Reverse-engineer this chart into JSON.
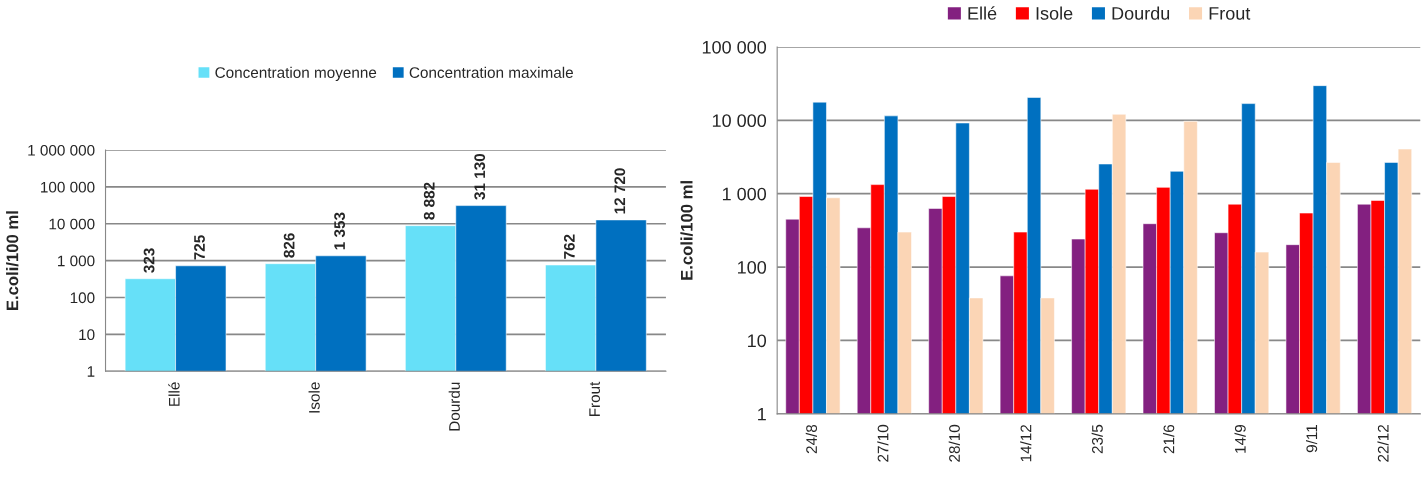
{
  "chart_data": [
    {
      "type": "bar",
      "ylabel": "E.coli/100 ml",
      "categories": [
        "Ellé",
        "Isole",
        "Dourdu",
        "Frout"
      ],
      "series": [
        {
          "name": "Concentration moyenne",
          "color": "#66e0f8",
          "values": [
            323,
            826,
            8882,
            762
          ],
          "value_labels": [
            "323",
            "826",
            "8 882",
            "762"
          ]
        },
        {
          "name": "Concentration maximale",
          "color": "#0070c0",
          "values": [
            725,
            1353,
            31130,
            12720
          ],
          "value_labels": [
            "725",
            "1 353",
            "31 130",
            "12 720"
          ]
        }
      ],
      "log": true,
      "ylim": [
        1,
        1000000
      ],
      "yticks": [
        1,
        10,
        100,
        {
          "value": 1000,
          "label": "1 000"
        },
        {
          "value": 10000,
          "label": "10 000"
        },
        {
          "value": 100000,
          "label": "100 000"
        },
        {
          "value": 1000000,
          "label": "1 000 000"
        }
      ],
      "grid": "y",
      "legend": "top"
    },
    {
      "type": "bar",
      "ylabel": "E.coli/100 ml",
      "categories": [
        "24/8",
        "27/10",
        "28/10",
        "14/12",
        "23/5",
        "21/6",
        "14/9",
        "9/11",
        "22/12"
      ],
      "series": [
        {
          "name": "Ellé",
          "color": "#832080",
          "values": [
            450,
            343,
            630,
            76,
            241,
            390,
            294,
            202,
            720
          ]
        },
        {
          "name": "Isole",
          "color": "#ff0000",
          "values": [
            915,
            1330,
            915,
            300,
            1150,
            1220,
            720,
            545,
            810
          ]
        },
        {
          "name": "Dourdu",
          "color": "#0070c0",
          "values": [
            17700,
            11500,
            9200,
            20500,
            2540,
            2020,
            16900,
            29700,
            2670
          ]
        },
        {
          "name": "Frout",
          "color": "#fbd5b5",
          "values": [
            880,
            300,
            38,
            38,
            12100,
            9700,
            160,
            2670,
            4060
          ]
        }
      ],
      "log": true,
      "ylim": [
        1,
        100000
      ],
      "yticks": [
        1,
        10,
        100,
        {
          "value": 1000,
          "label": "1 000"
        },
        {
          "value": 10000,
          "label": "10 000"
        },
        {
          "value": 100000,
          "label": "100 000"
        }
      ],
      "grid": "y",
      "legend": "top"
    }
  ]
}
